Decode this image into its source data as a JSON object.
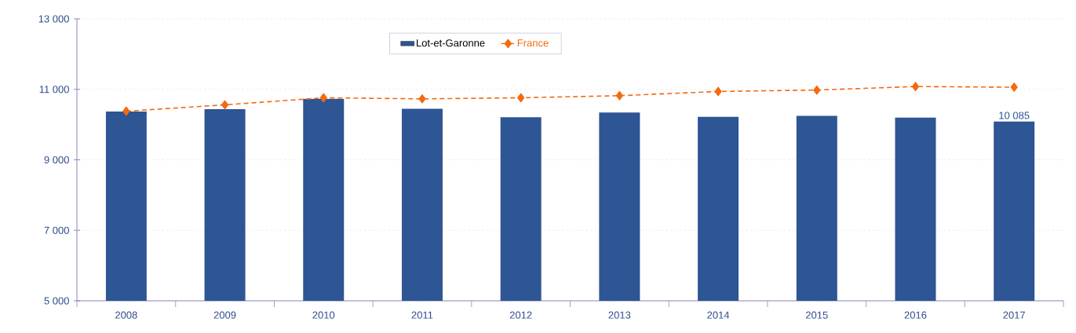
{
  "chart_data": {
    "type": "bar",
    "categories": [
      "2008",
      "2009",
      "2010",
      "2011",
      "2012",
      "2013",
      "2014",
      "2015",
      "2016",
      "2017"
    ],
    "series": [
      {
        "name": "Lot-et-Garonne",
        "color": "#2e5594",
        "values": [
          10370,
          10440,
          10730,
          10450,
          10210,
          10340,
          10220,
          10250,
          10200,
          10085
        ],
        "value_labels": [
          null,
          null,
          null,
          null,
          null,
          null,
          null,
          null,
          null,
          "10 085"
        ]
      },
      {
        "name": "France",
        "type": "line",
        "color": "#f26b10",
        "marker": "diamond",
        "line_style": "dashed",
        "values": [
          10380,
          10560,
          10760,
          10730,
          10760,
          10820,
          10940,
          10980,
          11080,
          11060
        ]
      }
    ],
    "ylim": [
      5000,
      13000
    ],
    "yticks": [
      {
        "value": 5000,
        "label": "5 000"
      },
      {
        "value": 7000,
        "label": "7 000"
      },
      {
        "value": 9000,
        "label": "9 000"
      },
      {
        "value": 11000,
        "label": "11 000"
      },
      {
        "value": 13000,
        "label": "13 000"
      }
    ],
    "grid": "y",
    "legend": "top"
  }
}
